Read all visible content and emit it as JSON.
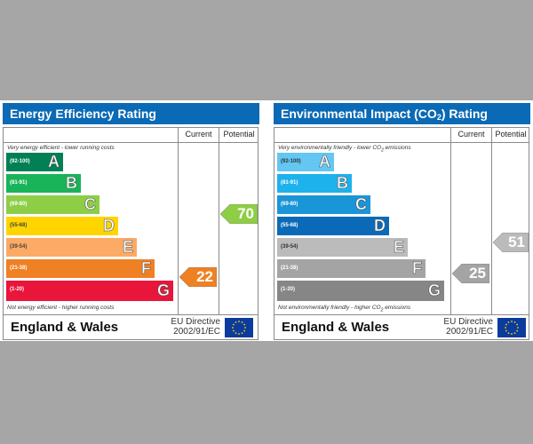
{
  "colors": {
    "header_blue": "#0a6ab5",
    "background_gray": "#a6a6a6",
    "eu_flag": "#0b3b9c",
    "eu_stars": "#ffd200"
  },
  "energy": {
    "title": "Energy Efficiency Rating",
    "col_current": "Current",
    "col_potential": "Potential",
    "top_note": "Very energy efficient - lower running costs",
    "bottom_note": "Not energy efficient - higher running costs",
    "bands": [
      {
        "range": "(92-100)",
        "letter": "A",
        "color": "#008054"
      },
      {
        "range": "(81-91)",
        "letter": "B",
        "color": "#19b459"
      },
      {
        "range": "(69-80)",
        "letter": "C",
        "color": "#8dce46"
      },
      {
        "range": "(55-68)",
        "letter": "D",
        "color": "#ffd500"
      },
      {
        "range": "(39-54)",
        "letter": "E",
        "color": "#fcaa65"
      },
      {
        "range": "(21-38)",
        "letter": "F",
        "color": "#ef8023"
      },
      {
        "range": "(1-20)",
        "letter": "G",
        "color": "#e9153b"
      }
    ],
    "current": {
      "value": "22",
      "color": "#ef8023"
    },
    "potential": {
      "value": "70",
      "color": "#8dce46"
    },
    "country": "England & Wales",
    "directive_line1": "EU Directive",
    "directive_line2": "2002/91/EC"
  },
  "environment": {
    "title_pre": "Environmental Impact (CO",
    "title_sub": "2",
    "title_post": ") Rating",
    "col_current": "Current",
    "col_potential": "Potential",
    "top_note_pre": "Very environmentally friendly - lower CO",
    "top_note_sub": "2",
    "top_note_post": " emissions",
    "bottom_note_pre": "Not environmentally friendly - higher CO",
    "bottom_note_sub": "2",
    "bottom_note_post": " emissions",
    "bands": [
      {
        "range": "(92-100)",
        "letter": "A",
        "color": "#63c6f3"
      },
      {
        "range": "(81-91)",
        "letter": "B",
        "color": "#1eb2ec"
      },
      {
        "range": "(69-80)",
        "letter": "C",
        "color": "#1a95d8"
      },
      {
        "range": "(55-68)",
        "letter": "D",
        "color": "#0b6ab7"
      },
      {
        "range": "(39-54)",
        "letter": "E",
        "color": "#bbbbbb"
      },
      {
        "range": "(21-38)",
        "letter": "F",
        "color": "#a4a4a4"
      },
      {
        "range": "(1-20)",
        "letter": "G",
        "color": "#868686"
      }
    ],
    "current": {
      "value": "25",
      "color": "#a4a4a4"
    },
    "potential": {
      "value": "51",
      "color": "#bbbbbb"
    },
    "country": "England & Wales",
    "directive_line1": "EU Directive",
    "directive_line2": "2002/91/EC"
  }
}
